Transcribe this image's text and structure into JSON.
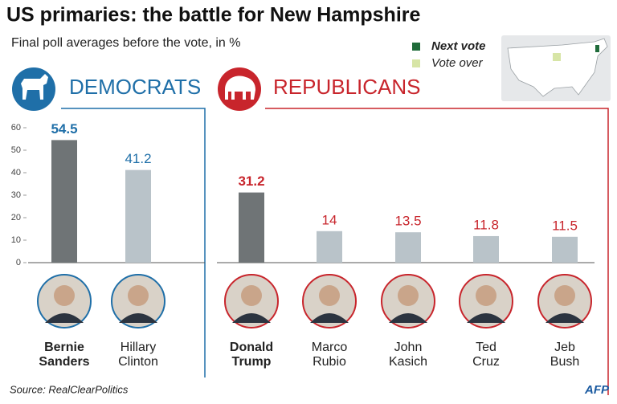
{
  "header": {
    "title": "US primaries: the battle for New Hampshire",
    "subtitle": "Final poll averages before the vote, in %"
  },
  "legend": [
    {
      "label": "Next vote",
      "color": "#1f6b3a"
    },
    {
      "label": "Vote over",
      "color": "#d7e5a6"
    }
  ],
  "chart_data": [
    {
      "type": "bar",
      "title": "DEMOCRATS",
      "title_color": "#1f6fa8",
      "categories": [
        "Bernie Sanders",
        "Hillary Clinton"
      ],
      "values": [
        54.5,
        41.2
      ],
      "colors": [
        "#6f7476",
        "#b9c3c9"
      ],
      "label_color": "#1f6fa8",
      "ylim": [
        0,
        60
      ],
      "yticks": [
        0,
        10,
        20,
        30,
        40,
        50,
        60
      ]
    },
    {
      "type": "bar",
      "title": "REPUBLICANS",
      "title_color": "#c8252c",
      "categories": [
        "Donald Trump",
        "Marco Rubio",
        "John Kasich",
        "Ted Cruz",
        "Jeb Bush"
      ],
      "values": [
        31.2,
        14,
        13.5,
        11.8,
        11.5
      ],
      "colors": [
        "#6f7476",
        "#b9c3c9",
        "#b9c3c9",
        "#b9c3c9",
        "#b9c3c9"
      ],
      "label_color": "#c8252c",
      "ylim": [
        0,
        60
      ]
    }
  ],
  "footer": {
    "source": "Source: RealClearPolitics",
    "credit": "AFP"
  }
}
